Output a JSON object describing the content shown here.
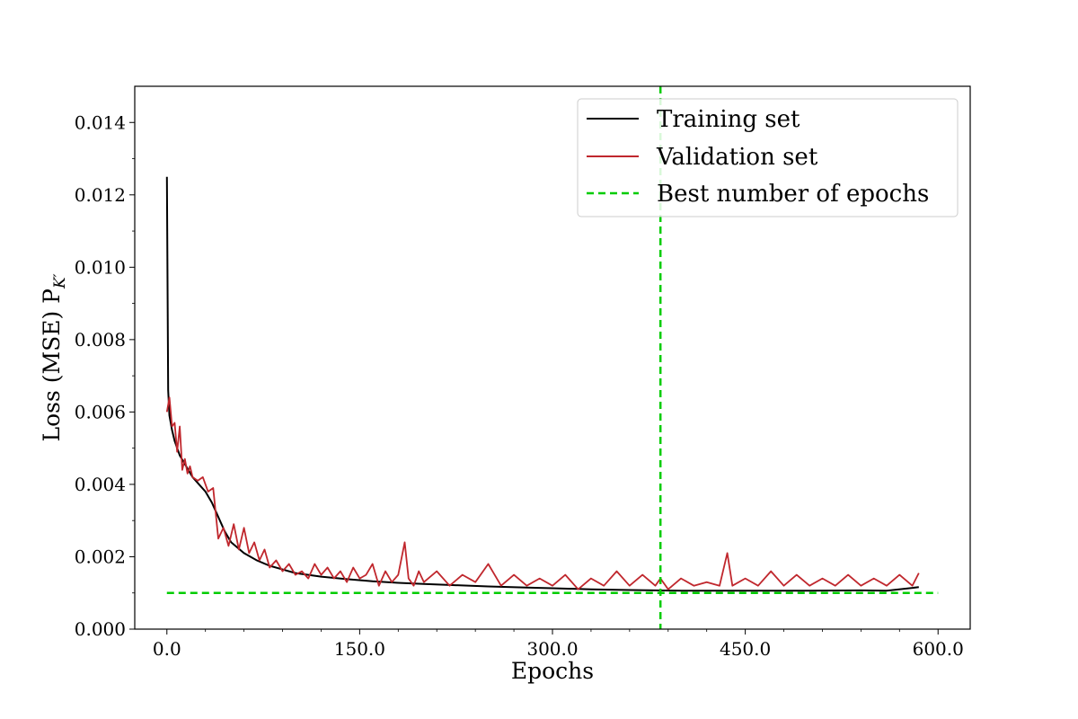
{
  "chart_data": {
    "type": "line",
    "xlabel": "Epochs",
    "ylabel": "Loss (MSE) P",
    "ylabel_sub": "K′",
    "xlim": [
      -25,
      625
    ],
    "ylim": [
      0,
      0.015
    ],
    "xticks": [
      0,
      150,
      300,
      450,
      600
    ],
    "xtick_labels": [
      "0.0",
      "150.0",
      "300.0",
      "450.0",
      "600.0"
    ],
    "yticks": [
      0,
      0.002,
      0.004,
      0.006,
      0.008,
      0.01,
      0.012,
      0.014
    ],
    "ytick_labels": [
      "0.000",
      "0.002",
      "0.004",
      "0.006",
      "0.008",
      "0.010",
      "0.012",
      "0.014"
    ],
    "grid": false,
    "legend_position": "top-right",
    "series": [
      {
        "name": "Training set",
        "color": "#000000",
        "style": "solid",
        "x": [
          0,
          1,
          2,
          4,
          6,
          10,
          15,
          20,
          25,
          30,
          35,
          40,
          45,
          50,
          60,
          70,
          80,
          90,
          100,
          120,
          140,
          160,
          180,
          200,
          220,
          250,
          280,
          300,
          330,
          360,
          380,
          400,
          430,
          460,
          500,
          540,
          560,
          585
        ],
        "y": [
          0.0125,
          0.0066,
          0.0059,
          0.0055,
          0.0052,
          0.0048,
          0.0045,
          0.0042,
          0.004,
          0.0038,
          0.0035,
          0.0031,
          0.0027,
          0.0024,
          0.0021,
          0.0019,
          0.00175,
          0.00165,
          0.00155,
          0.00145,
          0.00138,
          0.00132,
          0.00128,
          0.00125,
          0.00122,
          0.00118,
          0.00115,
          0.00113,
          0.0011,
          0.00108,
          0.00107,
          0.00106,
          0.00106,
          0.00106,
          0.00106,
          0.00107,
          0.00106,
          0.00116
        ]
      },
      {
        "name": "Validation set",
        "color": "#c0272d",
        "style": "solid",
        "x": [
          0,
          2,
          4,
          6,
          8,
          10,
          12,
          14,
          16,
          18,
          20,
          24,
          28,
          32,
          36,
          40,
          44,
          48,
          52,
          56,
          60,
          64,
          68,
          72,
          76,
          80,
          85,
          90,
          95,
          100,
          105,
          110,
          115,
          120,
          125,
          130,
          135,
          140,
          145,
          150,
          155,
          160,
          165,
          170,
          175,
          180,
          185,
          188,
          192,
          196,
          200,
          210,
          220,
          230,
          240,
          250,
          260,
          270,
          280,
          290,
          300,
          310,
          320,
          330,
          340,
          350,
          360,
          370,
          380,
          384,
          390,
          400,
          410,
          420,
          430,
          436,
          440,
          450,
          460,
          470,
          480,
          490,
          500,
          510,
          520,
          530,
          540,
          550,
          560,
          570,
          580,
          585
        ],
        "y": [
          0.006,
          0.0064,
          0.0056,
          0.0057,
          0.0049,
          0.0056,
          0.0044,
          0.0047,
          0.0043,
          0.0045,
          0.0042,
          0.0041,
          0.0042,
          0.0038,
          0.0039,
          0.0025,
          0.0028,
          0.0023,
          0.0029,
          0.0022,
          0.0028,
          0.0021,
          0.0024,
          0.0019,
          0.0022,
          0.0017,
          0.0019,
          0.0016,
          0.0018,
          0.0015,
          0.0016,
          0.0014,
          0.0018,
          0.0015,
          0.0017,
          0.0014,
          0.0016,
          0.0013,
          0.0017,
          0.0014,
          0.0015,
          0.0018,
          0.0012,
          0.0016,
          0.0013,
          0.0015,
          0.0024,
          0.0014,
          0.0012,
          0.0016,
          0.0013,
          0.0016,
          0.0012,
          0.0015,
          0.0013,
          0.0018,
          0.0012,
          0.0015,
          0.0012,
          0.0014,
          0.0012,
          0.0015,
          0.0011,
          0.0014,
          0.0012,
          0.0016,
          0.0012,
          0.0015,
          0.0012,
          0.0014,
          0.0011,
          0.0014,
          0.0012,
          0.0013,
          0.0012,
          0.0021,
          0.0012,
          0.0014,
          0.0012,
          0.0016,
          0.0012,
          0.0015,
          0.0012,
          0.0014,
          0.0012,
          0.0015,
          0.0012,
          0.0014,
          0.0012,
          0.0015,
          0.0012,
          0.00155
        ]
      },
      {
        "name": "Best number of epochs",
        "color": "#00cc00",
        "style": "dashed",
        "vertical_x": 384,
        "horizontal_y": 0.001,
        "horizontal_x_range": [
          0,
          600
        ]
      }
    ]
  }
}
